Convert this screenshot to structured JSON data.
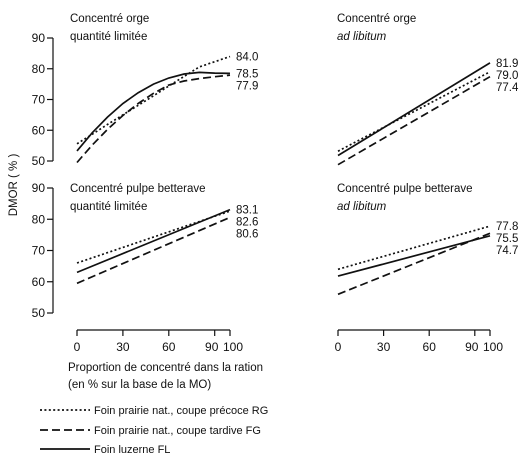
{
  "figure": {
    "ylabel": "DMOR ( % )",
    "xlabel_line1": "Proportion de concentré dans la ration",
    "xlabel_line2": "(en % sur la base de la MO)",
    "x_ticks": [
      "0",
      "30",
      "60",
      "90",
      "100"
    ],
    "y_ticks_top": [
      "90",
      "80",
      "70",
      "60",
      "50"
    ],
    "y_ticks_bottom": [
      "90",
      "80",
      "70",
      "60",
      "50"
    ]
  },
  "legend": [
    {
      "key": "RG",
      "label": "Foin prairie nat., coupe précoce RG",
      "style": "dotted"
    },
    {
      "key": "FG",
      "label": "Foin prairie nat., coupe tardive FG",
      "style": "dashed"
    },
    {
      "key": "FL",
      "label": "Foin luzerne FL",
      "style": "solid"
    }
  ],
  "chart_data": [
    {
      "type": "line",
      "title_line1": "Concentré orge",
      "title_line2": "quantité limitée",
      "title2_italic": false,
      "x": [
        0,
        10,
        20,
        30,
        40,
        50,
        60,
        70,
        80,
        90,
        100
      ],
      "ylim": [
        50,
        90
      ],
      "xlim": [
        0,
        100
      ],
      "series": [
        {
          "key": "RG",
          "values": [
            55.6,
            58.7,
            61.9,
            65.0,
            68.1,
            71.2,
            74.4,
            77.5,
            80.6,
            82.3,
            84.0
          ]
        },
        {
          "key": "FG",
          "values": [
            49.5,
            55.2,
            60.3,
            64.8,
            68.7,
            72.0,
            74.7,
            76.0,
            76.8,
            77.4,
            77.9
          ]
        },
        {
          "key": "FL",
          "values": [
            53.3,
            59.2,
            64.3,
            68.7,
            72.2,
            75.0,
            77.0,
            78.3,
            78.8,
            78.6,
            78.5
          ]
        }
      ],
      "end_labels": [
        "84.0",
        "78.5",
        "77.9"
      ]
    },
    {
      "type": "line",
      "title_line1": "Concentré orge",
      "title_line2": "ad libitum",
      "title2_italic": true,
      "x": [
        0,
        100
      ],
      "ylim": [
        50,
        90
      ],
      "xlim": [
        0,
        100
      ],
      "series": [
        {
          "key": "RG",
          "values": [
            53.2,
            79.0
          ]
        },
        {
          "key": "FG",
          "values": [
            48.8,
            77.4
          ]
        },
        {
          "key": "FL",
          "values": [
            51.8,
            81.9
          ]
        }
      ],
      "end_labels": [
        "81.9",
        "79.0",
        "77.4"
      ]
    },
    {
      "type": "line",
      "title_line1": "Concentré pulpe betterave",
      "title_line2": "quantité limitée",
      "title2_italic": false,
      "x": [
        0,
        100
      ],
      "ylim": [
        50,
        90
      ],
      "xlim": [
        0,
        100
      ],
      "series": [
        {
          "key": "RG",
          "values": [
            66.0,
            82.6
          ]
        },
        {
          "key": "FG",
          "values": [
            59.5,
            80.6
          ]
        },
        {
          "key": "FL",
          "values": [
            63.0,
            83.1
          ]
        }
      ],
      "end_labels": [
        "83.1",
        "82.6",
        "80.6"
      ]
    },
    {
      "type": "line",
      "title_line1": "Concentré pulpe betterave",
      "title_line2": "ad libitum",
      "title2_italic": true,
      "x": [
        0,
        100
      ],
      "ylim": [
        50,
        90
      ],
      "xlim": [
        0,
        100
      ],
      "series": [
        {
          "key": "RG",
          "values": [
            64.0,
            77.8
          ]
        },
        {
          "key": "FG",
          "values": [
            56.0,
            75.5
          ]
        },
        {
          "key": "FL",
          "values": [
            61.8,
            74.7
          ]
        }
      ],
      "end_labels": [
        "77.8",
        "75.5",
        "74.7"
      ]
    }
  ]
}
